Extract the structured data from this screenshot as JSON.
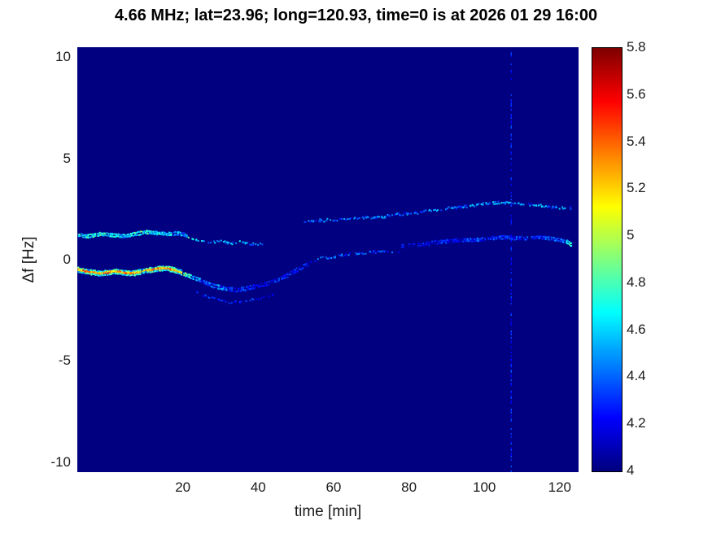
{
  "chart_data": {
    "type": "heatmap",
    "title": "4.66 MHz;  lat=23.96; long=120.93, time=0 is at 2026 01 29 16:00",
    "xlabel": "time [min]",
    "ylabel": "Δf [Hz]",
    "xlim": [
      -8,
      125
    ],
    "ylim": [
      -10.5,
      10.5
    ],
    "xticks": [
      20,
      40,
      60,
      80,
      100,
      120
    ],
    "yticks": [
      10,
      5,
      0,
      -5,
      -10
    ],
    "grid": false,
    "colormap": "jet",
    "background_value": 4,
    "colorbar": {
      "min": 4,
      "max": 5.8,
      "ticks": [
        4,
        4.2,
        4.4,
        4.6,
        4.8,
        5,
        5.2,
        5.4,
        5.6,
        5.8
      ],
      "position": "right"
    },
    "vertical_artifact": {
      "time": 107,
      "value": 4.28
    },
    "series": [
      {
        "name": "upper-trace-early",
        "style": {
          "dots": 2,
          "spread": 1.3,
          "jitter": 0.22,
          "edgeDrop": 0.35,
          "density": 0.85,
          "size": 2
        },
        "points": [
          [
            -8,
            1.25,
            5.0
          ],
          [
            -5,
            1.2,
            5.0
          ],
          [
            -2,
            1.3,
            5.05
          ],
          [
            1,
            1.25,
            5.0
          ],
          [
            4,
            1.2,
            4.9
          ],
          [
            7,
            1.3,
            5.0
          ],
          [
            10,
            1.4,
            5.05
          ],
          [
            13,
            1.35,
            5.0
          ],
          [
            16,
            1.3,
            4.9
          ],
          [
            19,
            1.35,
            4.9
          ],
          [
            21,
            1.2,
            4.7
          ]
        ]
      },
      {
        "name": "upper-trace-early-tail",
        "style": {
          "dots": 1,
          "spread": 1.1,
          "jitter": 0.18,
          "edgeDrop": 0,
          "density": 0.5,
          "size": 2
        },
        "points": [
          [
            21,
            1.2,
            4.7
          ],
          [
            23,
            1.0,
            4.6
          ],
          [
            25,
            0.95,
            4.55
          ],
          [
            27,
            0.9,
            4.5
          ],
          [
            29,
            0.95,
            4.6
          ],
          [
            31,
            0.9,
            4.5
          ],
          [
            33,
            0.85,
            4.45
          ],
          [
            35,
            0.9,
            4.55
          ],
          [
            37,
            0.85,
            4.45
          ],
          [
            39,
            0.8,
            4.4
          ],
          [
            41,
            0.8,
            4.35
          ]
        ]
      },
      {
        "name": "lower-trace-strong",
        "style": {
          "dots": 4,
          "spread": 2.2,
          "jitter": 0.25,
          "edgeDrop": 0.9,
          "density": 0.95,
          "size": 2
        },
        "points": [
          [
            -8,
            -0.45,
            5.55
          ],
          [
            -6,
            -0.55,
            5.6
          ],
          [
            -4,
            -0.6,
            5.6
          ],
          [
            -2,
            -0.65,
            5.55
          ],
          [
            0,
            -0.6,
            5.6
          ],
          [
            2,
            -0.55,
            5.6
          ],
          [
            4,
            -0.6,
            5.55
          ],
          [
            6,
            -0.65,
            5.6
          ],
          [
            8,
            -0.6,
            5.5
          ],
          [
            10,
            -0.5,
            5.55
          ],
          [
            12,
            -0.45,
            5.6
          ],
          [
            14,
            -0.4,
            5.6
          ],
          [
            16,
            -0.4,
            5.55
          ],
          [
            18,
            -0.5,
            5.55
          ],
          [
            20,
            -0.65,
            5.4
          ]
        ]
      },
      {
        "name": "lower-trace-descent",
        "style": {
          "dots": 2,
          "spread": 1.5,
          "jitter": 0.2,
          "edgeDrop": 0.3,
          "density": 0.8,
          "size": 2
        },
        "points": [
          [
            20,
            -0.65,
            5.1
          ],
          [
            22,
            -0.8,
            4.9
          ],
          [
            24,
            -0.95,
            4.7
          ],
          [
            26,
            -1.1,
            4.6
          ],
          [
            28,
            -1.25,
            4.65
          ],
          [
            30,
            -1.35,
            4.7
          ],
          [
            32,
            -1.42,
            4.6
          ],
          [
            34,
            -1.46,
            4.5
          ],
          [
            36,
            -1.42,
            4.6
          ],
          [
            38,
            -1.32,
            4.5
          ],
          [
            40,
            -1.25,
            4.45
          ],
          [
            42,
            -1.15,
            4.5
          ],
          [
            44,
            -1.02,
            4.45
          ],
          [
            46,
            -0.88,
            4.6
          ],
          [
            48,
            -0.68,
            4.5
          ],
          [
            50,
            -0.48,
            4.45
          ],
          [
            52,
            -0.28,
            4.5
          ],
          [
            54,
            -0.1,
            4.45
          ]
        ]
      },
      {
        "name": "faint-sub-trace",
        "style": {
          "dots": 1,
          "spread": 1.0,
          "jitter": 0.12,
          "edgeDrop": 0,
          "density": 0.35,
          "size": 2
        },
        "points": [
          [
            23,
            -1.55,
            4.25
          ],
          [
            26,
            -1.75,
            4.3
          ],
          [
            29,
            -1.95,
            4.25
          ],
          [
            32,
            -2.1,
            4.3
          ],
          [
            35,
            -2.05,
            4.25
          ],
          [
            38,
            -1.95,
            4.3
          ],
          [
            41,
            -1.85,
            4.25
          ],
          [
            44,
            -1.7,
            4.25
          ]
        ]
      },
      {
        "name": "mid-scatter",
        "style": {
          "dots": 1,
          "spread": 1.2,
          "jitter": 0.15,
          "edgeDrop": 0,
          "density": 0.45,
          "size": 2
        },
        "points": [
          [
            55,
            0.0,
            4.4
          ],
          [
            57,
            0.15,
            4.5
          ],
          [
            59,
            0.1,
            4.35
          ],
          [
            61,
            0.2,
            4.4
          ],
          [
            63,
            0.3,
            4.35
          ],
          [
            66,
            0.35,
            4.4
          ],
          [
            69,
            0.4,
            4.35
          ],
          [
            72,
            0.45,
            4.4
          ],
          [
            75,
            0.4,
            4.3
          ],
          [
            78,
            0.5,
            4.3
          ]
        ]
      },
      {
        "name": "upper-trace-right",
        "style": {
          "dots": 1,
          "spread": 1.3,
          "jitter": 0.18,
          "edgeDrop": 0,
          "density": 0.55,
          "size": 2
        },
        "points": [
          [
            52,
            1.9,
            4.35
          ],
          [
            55,
            1.95,
            4.4
          ],
          [
            58,
            2.0,
            4.45
          ],
          [
            61,
            2.0,
            4.35
          ],
          [
            64,
            2.05,
            4.4
          ],
          [
            67,
            2.1,
            4.35
          ],
          [
            70,
            2.1,
            4.4
          ],
          [
            73,
            2.15,
            4.5
          ],
          [
            76,
            2.25,
            4.4
          ],
          [
            79,
            2.3,
            4.35
          ],
          [
            82,
            2.35,
            4.4
          ],
          [
            85,
            2.45,
            4.45
          ],
          [
            88,
            2.5,
            4.5
          ],
          [
            91,
            2.6,
            4.4
          ],
          [
            94,
            2.65,
            4.45
          ],
          [
            97,
            2.7,
            4.5
          ],
          [
            100,
            2.8,
            4.45
          ],
          [
            103,
            2.85,
            4.5
          ],
          [
            106,
            2.85,
            4.55
          ],
          [
            109,
            2.8,
            4.45
          ],
          [
            112,
            2.75,
            4.4
          ],
          [
            115,
            2.7,
            4.5
          ],
          [
            118,
            2.65,
            4.45
          ],
          [
            121,
            2.6,
            4.5
          ],
          [
            123,
            2.55,
            4.4
          ]
        ]
      },
      {
        "name": "lower-trace-right",
        "style": {
          "dots": 2,
          "spread": 1.2,
          "jitter": 0.18,
          "edgeDrop": 0.2,
          "density": 0.7,
          "size": 2
        },
        "points": [
          [
            78,
            0.7,
            4.35
          ],
          [
            81,
            0.75,
            4.4
          ],
          [
            84,
            0.8,
            4.35
          ],
          [
            87,
            0.9,
            4.4
          ],
          [
            90,
            0.95,
            4.45
          ],
          [
            93,
            1.0,
            4.4
          ],
          [
            96,
            1.0,
            4.5
          ],
          [
            99,
            1.05,
            4.45
          ],
          [
            102,
            1.1,
            4.5
          ],
          [
            105,
            1.15,
            4.45
          ],
          [
            108,
            1.1,
            4.45
          ],
          [
            111,
            1.1,
            4.5
          ],
          [
            114,
            1.15,
            4.45
          ],
          [
            117,
            1.1,
            4.5
          ],
          [
            120,
            1.0,
            4.6
          ],
          [
            122,
            0.9,
            4.8
          ],
          [
            123,
            0.75,
            5.0
          ]
        ]
      }
    ]
  }
}
